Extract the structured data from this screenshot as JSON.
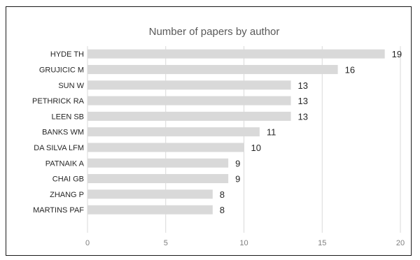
{
  "chart_data": {
    "type": "bar",
    "orientation": "horizontal",
    "title": "Number of papers by author",
    "xlabel": "",
    "ylabel": "",
    "categories": [
      "HYDE TH",
      "GRUJICIC M",
      "SUN W",
      "PETHRICK RA",
      "LEEN SB",
      "BANKS WM",
      "DA SILVA LFM",
      "PATNAIK A",
      "CHAI GB",
      "ZHANG P",
      "MARTINS PAF"
    ],
    "values": [
      19,
      16,
      13,
      13,
      13,
      11,
      10,
      9,
      9,
      8,
      8
    ],
    "xlim": [
      0,
      20
    ],
    "xticks": [
      "0",
      "5",
      "10",
      "15",
      "20"
    ],
    "grid": true,
    "legend": "none",
    "bar_color": "#d9d9d9",
    "gridline_color": "#d9d9d9"
  }
}
